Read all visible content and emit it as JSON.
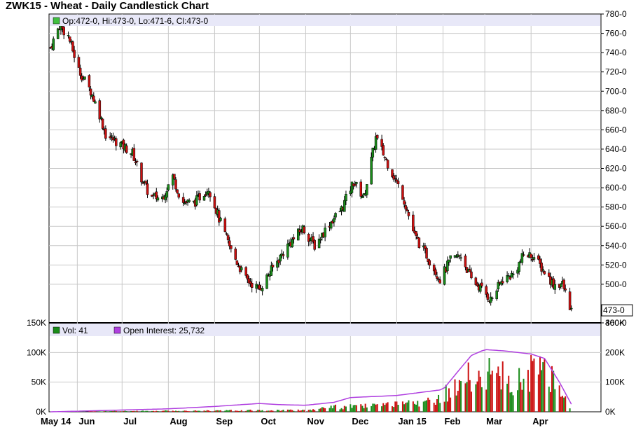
{
  "chart_data": [
    {
      "type": "candlestick",
      "title": "ZWK15 - Wheat - Daily Candlestick Chart",
      "ohlc_legend": "Op:472-0, Hi:473-0, Lo:471-6, Cl:473-0",
      "last_price_label": "473-0",
      "last_price": 473,
      "ylim": [
        460,
        780
      ],
      "y_ticks": [
        "780-0",
        "760-0",
        "740-0",
        "720-0",
        "700-0",
        "680-0",
        "660-0",
        "640-0",
        "620-0",
        "600-0",
        "580-0",
        "560-0",
        "540-0",
        "520-0",
        "500-0",
        "460-0"
      ],
      "x_labels": [
        "May 14",
        "Jun",
        "Jul",
        "Aug",
        "Sep",
        "Oct",
        "Nov",
        "Dec",
        "Jan 15",
        "Feb",
        "Mar",
        "Apr"
      ],
      "grid": true,
      "up_color": "#1a8c1a",
      "down_color": "#cc1010",
      "close_path": [
        {
          "date": "2014-05-14",
          "close": 745
        },
        {
          "date": "2014-05-20",
          "close": 768
        },
        {
          "date": "2014-05-26",
          "close": 757
        },
        {
          "date": "2014-06-02",
          "close": 722
        },
        {
          "date": "2014-06-10",
          "close": 700
        },
        {
          "date": "2014-06-16",
          "close": 676
        },
        {
          "date": "2014-06-20",
          "close": 655
        },
        {
          "date": "2014-06-30",
          "close": 645
        },
        {
          "date": "2014-07-08",
          "close": 636
        },
        {
          "date": "2014-07-14",
          "close": 610
        },
        {
          "date": "2014-07-20",
          "close": 590
        },
        {
          "date": "2014-07-28",
          "close": 590
        },
        {
          "date": "2014-08-04",
          "close": 612
        },
        {
          "date": "2014-08-10",
          "close": 585
        },
        {
          "date": "2014-08-18",
          "close": 584
        },
        {
          "date": "2014-08-28",
          "close": 600
        },
        {
          "date": "2014-09-04",
          "close": 568
        },
        {
          "date": "2014-09-12",
          "close": 535
        },
        {
          "date": "2014-09-22",
          "close": 505
        },
        {
          "date": "2014-10-01",
          "close": 495
        },
        {
          "date": "2014-10-10",
          "close": 517
        },
        {
          "date": "2014-10-20",
          "close": 540
        },
        {
          "date": "2014-10-30",
          "close": 558
        },
        {
          "date": "2014-11-07",
          "close": 540
        },
        {
          "date": "2014-11-17",
          "close": 563
        },
        {
          "date": "2014-11-25",
          "close": 578
        },
        {
          "date": "2014-12-03",
          "close": 606
        },
        {
          "date": "2014-12-10",
          "close": 590
        },
        {
          "date": "2014-12-18",
          "close": 652
        },
        {
          "date": "2014-12-26",
          "close": 625
        },
        {
          "date": "2015-01-05",
          "close": 592
        },
        {
          "date": "2015-01-13",
          "close": 550
        },
        {
          "date": "2015-01-21",
          "close": 530
        },
        {
          "date": "2015-01-30",
          "close": 505
        },
        {
          "date": "2015-02-06",
          "close": 525
        },
        {
          "date": "2015-02-13",
          "close": 530
        },
        {
          "date": "2015-02-20",
          "close": 505
        },
        {
          "date": "2015-02-27",
          "close": 495
        },
        {
          "date": "2015-03-05",
          "close": 484
        },
        {
          "date": "2015-03-13",
          "close": 505
        },
        {
          "date": "2015-03-20",
          "close": 510
        },
        {
          "date": "2015-03-27",
          "close": 530
        },
        {
          "date": "2015-04-02",
          "close": 530
        },
        {
          "date": "2015-04-09",
          "close": 515
        },
        {
          "date": "2015-04-16",
          "close": 500
        },
        {
          "date": "2015-04-22",
          "close": 500
        },
        {
          "date": "2015-04-28",
          "close": 473
        }
      ]
    },
    {
      "type": "bar",
      "legend_volume": "Vol: 41",
      "legend_oi": "Open Interest: 25,732",
      "volume_color_up": "#1a8c1a",
      "volume_color_down": "#cc1010",
      "oi_color": "#b040e0",
      "left_ticks": [
        "150K",
        "100K",
        "50K",
        "0K"
      ],
      "left_ylim": [
        0,
        150000
      ],
      "right_ticks": [
        "300K",
        "200K",
        "100K",
        "0K"
      ],
      "right_ylim": [
        0,
        300000
      ],
      "oi_path": [
        {
          "date": "2014-05-14",
          "oi": 0
        },
        {
          "date": "2014-06-01",
          "oi": 2000
        },
        {
          "date": "2014-07-01",
          "oi": 6000
        },
        {
          "date": "2014-08-01",
          "oi": 10000
        },
        {
          "date": "2014-09-01",
          "oi": 18000
        },
        {
          "date": "2014-10-01",
          "oi": 28000
        },
        {
          "date": "2014-10-15",
          "oi": 24000
        },
        {
          "date": "2014-11-01",
          "oi": 22000
        },
        {
          "date": "2014-11-20",
          "oi": 32000
        },
        {
          "date": "2014-12-01",
          "oi": 48000
        },
        {
          "date": "2015-01-01",
          "oi": 55000
        },
        {
          "date": "2015-02-01",
          "oi": 75000
        },
        {
          "date": "2015-02-10",
          "oi": 130000
        },
        {
          "date": "2015-02-20",
          "oi": 190000
        },
        {
          "date": "2015-03-01",
          "oi": 210000
        },
        {
          "date": "2015-03-15",
          "oi": 205000
        },
        {
          "date": "2015-04-01",
          "oi": 195000
        },
        {
          "date": "2015-04-10",
          "oi": 180000
        },
        {
          "date": "2015-04-20",
          "oi": 100000
        },
        {
          "date": "2015-04-28",
          "oi": 25732
        }
      ],
      "volume_path": [
        {
          "date": "2014-05-14",
          "vol": 500
        },
        {
          "date": "2014-11-01",
          "vol": 3000
        },
        {
          "date": "2014-11-20",
          "vol": 8000
        },
        {
          "date": "2014-12-20",
          "vol": 10000
        },
        {
          "date": "2015-01-20",
          "vol": 15000
        },
        {
          "date": "2015-02-10",
          "vol": 40000
        },
        {
          "date": "2015-02-20",
          "vol": 60000
        },
        {
          "date": "2015-03-05",
          "vol": 65000
        },
        {
          "date": "2015-03-20",
          "vol": 50000
        },
        {
          "date": "2015-04-05",
          "vol": 70000
        },
        {
          "date": "2015-04-15",
          "vol": 60000
        },
        {
          "date": "2015-04-25",
          "vol": 20000
        },
        {
          "date": "2015-04-28",
          "vol": 41
        }
      ]
    }
  ]
}
